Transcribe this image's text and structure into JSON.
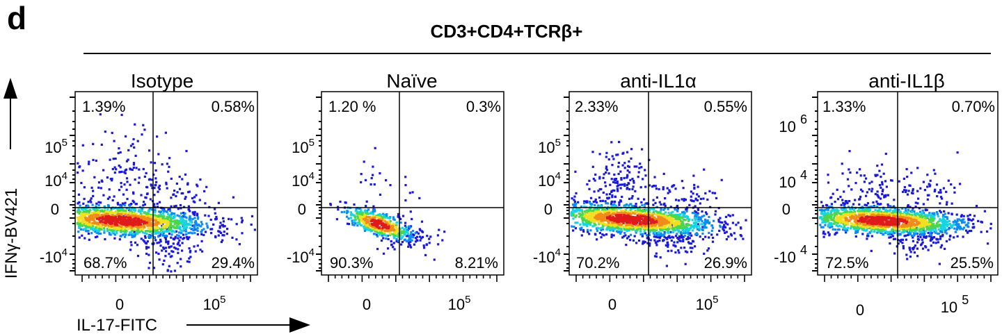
{
  "figure": {
    "panel_letter": "d",
    "header": "CD3+CD4+TCRβ+",
    "y_axis_label": "IFNγ-BV421",
    "x_axis_label": "IL-17-FITC"
  },
  "chart_data": [
    {
      "type": "scatter",
      "title": "Isotype",
      "xlabel": "IL-17-FITC",
      "ylabel": "IFNγ-BV421",
      "x_ticks": [
        "0",
        "10^5"
      ],
      "y_ticks": [
        "10^5",
        "10^4",
        "0",
        "-10^4"
      ],
      "quadrants": {
        "UL": "1.39%",
        "UR": "0.58%",
        "LL": "68.7%",
        "LR": "29.4%"
      }
    },
    {
      "type": "scatter",
      "title": "Naïve",
      "xlabel": "IL-17-FITC",
      "ylabel": "IFNγ-BV421",
      "x_ticks": [
        "0",
        "10^5"
      ],
      "y_ticks": [
        "10^5",
        "10^4",
        "0",
        "-10^4"
      ],
      "quadrants": {
        "UL": "1.20 %",
        "UR": "0.3%",
        "LL": "90.3%",
        "LR": "8.21%"
      }
    },
    {
      "type": "scatter",
      "title": "anti-IL1α",
      "xlabel": "IL-17-FITC",
      "ylabel": "IFNγ-BV421",
      "x_ticks": [
        "0",
        "10^5"
      ],
      "y_ticks": [
        "10^5",
        "10^4",
        "0",
        "-10^4"
      ],
      "quadrants": {
        "UL": "2.33%",
        "UR": "0.55%",
        "LL": "70.2%",
        "LR": "26.9%"
      }
    },
    {
      "type": "scatter",
      "title": "anti-IL1β",
      "xlabel": "IL-17-FITC",
      "ylabel": "IFNγ-BV421",
      "x_ticks": [
        "0",
        "10^5"
      ],
      "y_ticks": [
        "10^6",
        "10^4",
        "0",
        "-10^4"
      ],
      "quadrants": {
        "UL": "1.33%",
        "UR": "0.70%",
        "LL": "72.5%",
        "LR": "25.5%"
      }
    }
  ],
  "colors": {
    "low_density": "#1a1ad6",
    "density_ramp": [
      "#1a1ad6",
      "#0a8cf0",
      "#16d4e0",
      "#4cd64c",
      "#f0e020",
      "#f08c1a",
      "#e01a1a"
    ]
  }
}
